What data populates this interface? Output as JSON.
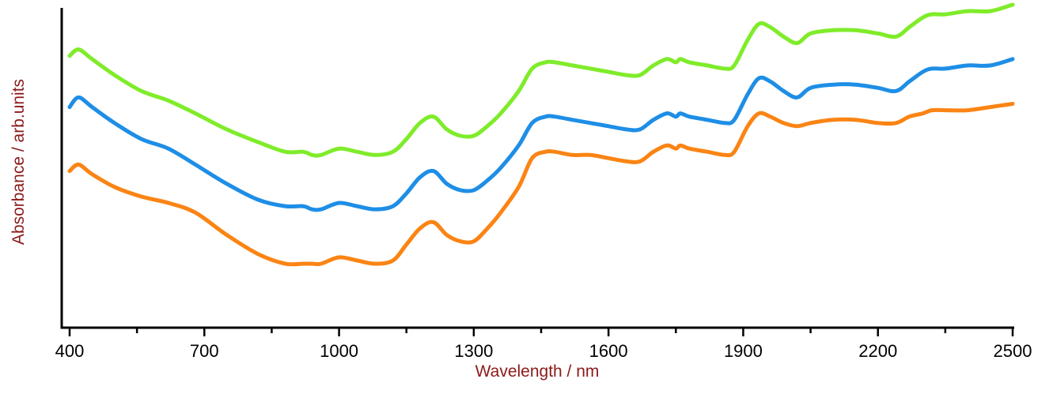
{
  "chart_data": {
    "type": "line",
    "title": "",
    "xlabel": "Wavelength / nm",
    "ylabel": "Absorbance / arb.units",
    "xlim": [
      400,
      2500
    ],
    "ylim": [
      0,
      1
    ],
    "grid": false,
    "legend": "none",
    "label_color": "#8b1a1a",
    "xticks": [
      400,
      700,
      1000,
      1300,
      1600,
      1900,
      2200,
      2500
    ],
    "xtick_labels": [
      "400",
      "700",
      "1000",
      "1300",
      "1600",
      "1900",
      "2200",
      "2500"
    ],
    "minor_xticks": [
      550,
      850,
      1150,
      1450,
      1750,
      2050,
      2350
    ],
    "series": [
      {
        "color": "#7fec2a",
        "x": [
          400,
          420,
          450,
          500,
          560,
          620,
          680,
          750,
          820,
          880,
          920,
          940,
          960,
          1000,
          1040,
          1080,
          1120,
          1150,
          1180,
          1210,
          1240,
          1270,
          1300,
          1330,
          1360,
          1400,
          1430,
          1460,
          1480,
          1520,
          1560,
          1600,
          1640,
          1670,
          1700,
          1730,
          1750,
          1760,
          1780,
          1820,
          1860,
          1880,
          1910,
          1935,
          1960,
          1990,
          2020,
          2050,
          2100,
          2150,
          2200,
          2240,
          2270,
          2300,
          2320,
          2350,
          2400,
          2450,
          2500
        ],
        "y": [
          0.85,
          0.87,
          0.84,
          0.79,
          0.74,
          0.71,
          0.67,
          0.62,
          0.58,
          0.55,
          0.55,
          0.54,
          0.54,
          0.56,
          0.55,
          0.54,
          0.55,
          0.59,
          0.64,
          0.66,
          0.62,
          0.6,
          0.6,
          0.63,
          0.67,
          0.74,
          0.81,
          0.83,
          0.83,
          0.82,
          0.81,
          0.8,
          0.79,
          0.79,
          0.82,
          0.84,
          0.83,
          0.84,
          0.83,
          0.82,
          0.81,
          0.82,
          0.9,
          0.95,
          0.94,
          0.91,
          0.89,
          0.92,
          0.93,
          0.93,
          0.92,
          0.91,
          0.94,
          0.97,
          0.98,
          0.98,
          0.99,
          0.99,
          1.01
        ]
      },
      {
        "color": "#1e8ee6",
        "x": [
          400,
          420,
          450,
          500,
          560,
          620,
          680,
          750,
          820,
          880,
          920,
          940,
          960,
          1000,
          1040,
          1080,
          1120,
          1150,
          1180,
          1210,
          1240,
          1270,
          1300,
          1330,
          1360,
          1400,
          1430,
          1460,
          1480,
          1520,
          1560,
          1600,
          1640,
          1670,
          1700,
          1730,
          1750,
          1760,
          1780,
          1820,
          1860,
          1880,
          1910,
          1935,
          1960,
          1990,
          2020,
          2050,
          2100,
          2150,
          2200,
          2240,
          2270,
          2300,
          2320,
          2350,
          2400,
          2450,
          2500
        ],
        "y": [
          0.69,
          0.72,
          0.69,
          0.64,
          0.59,
          0.56,
          0.51,
          0.45,
          0.4,
          0.38,
          0.38,
          0.37,
          0.37,
          0.39,
          0.38,
          0.37,
          0.38,
          0.42,
          0.47,
          0.49,
          0.45,
          0.43,
          0.43,
          0.46,
          0.5,
          0.57,
          0.64,
          0.66,
          0.66,
          0.65,
          0.64,
          0.63,
          0.62,
          0.62,
          0.65,
          0.67,
          0.66,
          0.67,
          0.66,
          0.65,
          0.64,
          0.65,
          0.73,
          0.78,
          0.77,
          0.74,
          0.72,
          0.75,
          0.76,
          0.76,
          0.75,
          0.74,
          0.77,
          0.8,
          0.81,
          0.81,
          0.82,
          0.82,
          0.84
        ]
      },
      {
        "color": "#fb8414",
        "x": [
          400,
          420,
          450,
          500,
          560,
          620,
          680,
          750,
          820,
          880,
          920,
          940,
          960,
          1000,
          1040,
          1080,
          1120,
          1150,
          1180,
          1210,
          1240,
          1270,
          1300,
          1330,
          1360,
          1400,
          1430,
          1460,
          1480,
          1520,
          1560,
          1600,
          1640,
          1670,
          1700,
          1730,
          1750,
          1760,
          1780,
          1820,
          1860,
          1880,
          1910,
          1935,
          1960,
          1990,
          2020,
          2050,
          2100,
          2150,
          2200,
          2240,
          2270,
          2300,
          2320,
          2350,
          2400,
          2450,
          2500
        ],
        "y": [
          0.49,
          0.51,
          0.48,
          0.44,
          0.41,
          0.39,
          0.36,
          0.29,
          0.23,
          0.2,
          0.2,
          0.2,
          0.2,
          0.22,
          0.21,
          0.2,
          0.21,
          0.26,
          0.31,
          0.33,
          0.29,
          0.27,
          0.27,
          0.31,
          0.36,
          0.44,
          0.53,
          0.55,
          0.55,
          0.54,
          0.54,
          0.53,
          0.52,
          0.52,
          0.55,
          0.57,
          0.56,
          0.57,
          0.56,
          0.55,
          0.54,
          0.55,
          0.63,
          0.67,
          0.66,
          0.64,
          0.63,
          0.64,
          0.65,
          0.65,
          0.64,
          0.64,
          0.66,
          0.67,
          0.68,
          0.68,
          0.68,
          0.69,
          0.7
        ]
      }
    ]
  }
}
